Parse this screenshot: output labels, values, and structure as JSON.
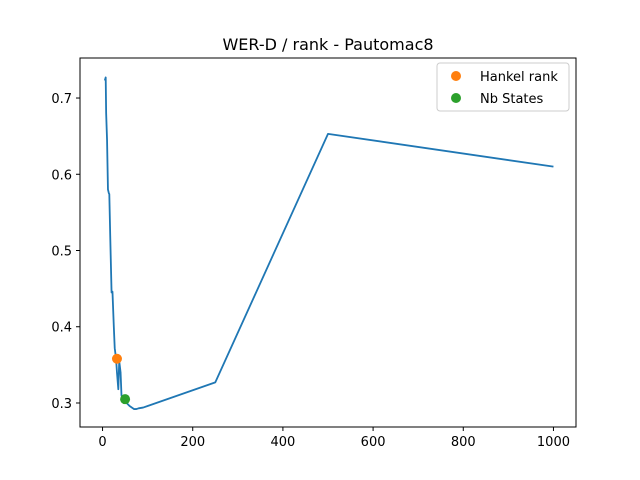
{
  "chart_data": {
    "type": "line",
    "title": "WER-D / rank - Pautomac8",
    "xlabel": "",
    "ylabel": "",
    "xlim": [
      -50,
      1050
    ],
    "ylim": [
      0.2685,
      0.7525
    ],
    "xticks": [
      0,
      200,
      400,
      600,
      800,
      1000
    ],
    "yticks": [
      0.3,
      0.4,
      0.5,
      0.6,
      0.7
    ],
    "grid": false,
    "legend_position": "top-right",
    "series": [
      {
        "color": "#1f77b4",
        "x": [
          5,
          7,
          8,
          10,
          12,
          14,
          15,
          17,
          20,
          22,
          25,
          27,
          30,
          32,
          35,
          37,
          40,
          42,
          45,
          50,
          55,
          60,
          70,
          75,
          80,
          90,
          100,
          250,
          500,
          1000
        ],
        "y": [
          0.723,
          0.727,
          0.68,
          0.645,
          0.58,
          0.575,
          0.574,
          0.52,
          0.445,
          0.446,
          0.4,
          0.372,
          0.358,
          0.34,
          0.318,
          0.355,
          0.34,
          0.31,
          0.305,
          0.302,
          0.299,
          0.296,
          0.292,
          0.292,
          0.293,
          0.294,
          0.296,
          0.327,
          0.653,
          0.61
        ]
      },
      {
        "name": "Hankel rank",
        "type": "marker",
        "color": "#ff7f0e",
        "x": [
          32
        ],
        "y": [
          0.358
        ]
      },
      {
        "name": "Nb States",
        "type": "marker",
        "color": "#2ca02c",
        "x": [
          50
        ],
        "y": [
          0.305
        ]
      }
    ]
  }
}
